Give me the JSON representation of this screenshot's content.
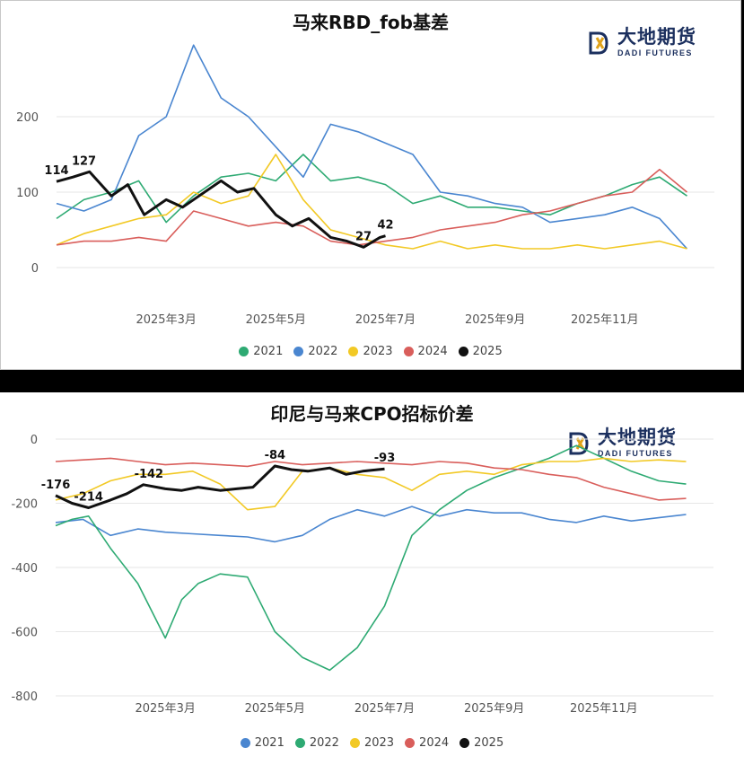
{
  "charts": [
    {
      "id": "top",
      "title": "马来RBD_fob基差"
    },
    {
      "id": "bottom",
      "title": "印尼与马来CPO招标价差"
    }
  ],
  "logo": {
    "cn": "大地期货",
    "en": "DADI FUTURES"
  },
  "colors": {
    "2021": "#2eaa73",
    "2022": "#4a86d0",
    "2023": "#f2c925",
    "2024": "#d95e5b",
    "2025": "#111111"
  },
  "chart_data": [
    {
      "type": "line",
      "title": "马来RBD_fob基差",
      "x_tick_labels": [
        "2025年3月",
        "2025年5月",
        "2025年7月",
        "2025年9月",
        "2025年11月"
      ],
      "x_tick_months": [
        3,
        5,
        7,
        9,
        11
      ],
      "x_range_month": [
        1,
        13
      ],
      "ylim": [
        0,
        300
      ],
      "y_ticks": [
        0,
        100,
        200
      ],
      "legend": [
        "2021",
        "2022",
        "2023",
        "2024",
        "2025"
      ],
      "annotations": [
        {
          "label": "114",
          "x": 1.0,
          "y": 114
        },
        {
          "label": "127",
          "x": 1.5,
          "y": 127
        },
        {
          "label": "27",
          "x": 6.6,
          "y": 27
        },
        {
          "label": "42",
          "x": 7.0,
          "y": 42
        }
      ],
      "series": [
        {
          "name": "2021",
          "x": [
            1.0,
            1.5,
            2.0,
            2.5,
            3.0,
            3.5,
            4.0,
            4.5,
            5.0,
            5.5,
            6.0,
            6.5,
            7.0,
            7.5,
            8.0,
            8.5,
            9.0,
            9.5,
            10.0,
            10.5,
            11.0,
            11.5,
            12.0,
            12.5
          ],
          "y": [
            65,
            90,
            100,
            115,
            60,
            95,
            120,
            125,
            115,
            150,
            115,
            120,
            110,
            85,
            95,
            80,
            80,
            75,
            70,
            85,
            95,
            110,
            120,
            95
          ]
        },
        {
          "name": "2022",
          "x": [
            1.0,
            1.5,
            2.0,
            2.5,
            3.0,
            3.5,
            4.0,
            4.5,
            5.0,
            5.5,
            6.0,
            6.5,
            7.0,
            7.5,
            8.0,
            8.5,
            9.0,
            9.5,
            10.0,
            10.5,
            11.0,
            11.5,
            12.0,
            12.5
          ],
          "y": [
            85,
            75,
            90,
            175,
            200,
            295,
            225,
            200,
            160,
            120,
            190,
            180,
            165,
            150,
            100,
            95,
            85,
            80,
            60,
            65,
            70,
            80,
            65,
            25
          ]
        },
        {
          "name": "2023",
          "x": [
            1.0,
            1.5,
            2.0,
            2.5,
            3.0,
            3.5,
            4.0,
            4.5,
            5.0,
            5.5,
            6.0,
            6.5,
            7.0,
            7.5,
            8.0,
            8.5,
            9.0,
            9.5,
            10.0,
            10.5,
            11.0,
            11.5,
            12.0,
            12.5
          ],
          "y": [
            30,
            45,
            55,
            65,
            70,
            100,
            85,
            95,
            150,
            90,
            50,
            40,
            30,
            25,
            35,
            25,
            30,
            25,
            25,
            30,
            25,
            30,
            35,
            25
          ]
        },
        {
          "name": "2024",
          "x": [
            1.0,
            1.5,
            2.0,
            2.5,
            3.0,
            3.5,
            4.0,
            4.5,
            5.0,
            5.5,
            6.0,
            6.5,
            7.0,
            7.5,
            8.0,
            8.5,
            9.0,
            9.5,
            10.0,
            10.5,
            11.0,
            11.5,
            12.0,
            12.5
          ],
          "y": [
            30,
            35,
            35,
            40,
            35,
            75,
            65,
            55,
            60,
            55,
            35,
            30,
            35,
            40,
            50,
            55,
            60,
            70,
            75,
            85,
            95,
            100,
            130,
            100
          ]
        },
        {
          "name": "2025",
          "x": [
            1.0,
            1.3,
            1.6,
            2.0,
            2.3,
            2.6,
            3.0,
            3.3,
            3.6,
            4.0,
            4.3,
            4.6,
            5.0,
            5.3,
            5.6,
            6.0,
            6.3,
            6.6,
            6.9,
            7.0
          ],
          "y": [
            114,
            120,
            127,
            95,
            110,
            70,
            90,
            80,
            95,
            115,
            100,
            105,
            70,
            55,
            65,
            40,
            35,
            27,
            40,
            42
          ]
        }
      ]
    },
    {
      "type": "line",
      "title": "印尼与马来CPO招标价差",
      "x_tick_labels": [
        "2025年3月",
        "2025年5月",
        "2025年7月",
        "2025年9月",
        "2025年11月"
      ],
      "x_tick_months": [
        3,
        5,
        7,
        9,
        11
      ],
      "x_range_month": [
        1,
        13
      ],
      "ylim": [
        -800,
        0
      ],
      "y_ticks": [
        0,
        -200,
        -400,
        -600,
        -800
      ],
      "legend": [
        "2021",
        "2022",
        "2023",
        "2024",
        "2025"
      ],
      "annotations": [
        {
          "label": "-176",
          "x": 1.0,
          "y": -176
        },
        {
          "label": "-214",
          "x": 1.6,
          "y": -214
        },
        {
          "label": "-142",
          "x": 2.7,
          "y": -142
        },
        {
          "label": "-84",
          "x": 5.0,
          "y": -84
        },
        {
          "label": "-93",
          "x": 7.0,
          "y": -93
        }
      ],
      "series": [
        {
          "name": "2021",
          "x": [
            1.0,
            1.5,
            2.0,
            2.5,
            3.0,
            3.5,
            4.0,
            4.5,
            5.0,
            5.5,
            6.0,
            6.5,
            7.0,
            7.5,
            8.0,
            8.5,
            9.0,
            9.5,
            10.0,
            10.5,
            11.0,
            11.5,
            12.0,
            12.5
          ],
          "y": [
            -260,
            -250,
            -300,
            -280,
            -290,
            -295,
            -300,
            -305,
            -320,
            -300,
            -250,
            -220,
            -240,
            -210,
            -240,
            -220,
            -230,
            -230,
            -250,
            -260,
            -240,
            -255,
            -245,
            -235
          ]
        },
        {
          "name": "2022",
          "x": [
            1.0,
            1.3,
            1.6,
            2.0,
            2.5,
            3.0,
            3.3,
            3.6,
            4.0,
            4.5,
            5.0,
            5.5,
            6.0,
            6.5,
            7.0,
            7.5,
            8.0,
            8.5,
            9.0,
            9.5,
            10.0,
            10.5,
            11.0,
            11.5,
            12.0,
            12.5
          ],
          "y": [
            -270,
            -250,
            -240,
            -340,
            -450,
            -620,
            -500,
            -450,
            -420,
            -430,
            -600,
            -680,
            -720,
            -650,
            -520,
            -300,
            -220,
            -160,
            -120,
            -90,
            -60,
            -20,
            -60,
            -100,
            -130,
            -140
          ]
        },
        {
          "name": "2023",
          "x": [
            1.0,
            1.5,
            2.0,
            2.5,
            3.0,
            3.5,
            4.0,
            4.5,
            5.0,
            5.5,
            6.0,
            6.5,
            7.0,
            7.5,
            8.0,
            8.5,
            9.0,
            9.5,
            10.0,
            10.5,
            11.0,
            11.5,
            12.0,
            12.5
          ],
          "y": [
            -190,
            -170,
            -130,
            -110,
            -110,
            -100,
            -140,
            -220,
            -210,
            -100,
            -90,
            -110,
            -120,
            -160,
            -110,
            -100,
            -110,
            -80,
            -70,
            -70,
            -60,
            -70,
            -65,
            -70
          ]
        },
        {
          "name": "2024",
          "x": [
            1.0,
            1.5,
            2.0,
            2.5,
            3.0,
            3.5,
            4.0,
            4.5,
            5.0,
            5.5,
            6.0,
            6.5,
            7.0,
            7.5,
            8.0,
            8.5,
            9.0,
            9.5,
            10.0,
            10.5,
            11.0,
            11.5,
            12.0,
            12.5
          ],
          "y": [
            -70,
            -65,
            -60,
            -70,
            -80,
            -75,
            -80,
            -85,
            -70,
            -80,
            -75,
            -70,
            -75,
            -80,
            -70,
            -75,
            -90,
            -95,
            -110,
            -120,
            -150,
            -170,
            -190,
            -185
          ]
        },
        {
          "name": "2025",
          "x": [
            1.0,
            1.3,
            1.6,
            2.0,
            2.3,
            2.6,
            3.0,
            3.3,
            3.6,
            4.0,
            4.3,
            4.6,
            5.0,
            5.3,
            5.6,
            6.0,
            6.3,
            6.6,
            7.0
          ],
          "y": [
            -176,
            -200,
            -214,
            -190,
            -170,
            -142,
            -155,
            -160,
            -150,
            -160,
            -155,
            -150,
            -84,
            -95,
            -100,
            -90,
            -110,
            -100,
            -93
          ]
        }
      ]
    }
  ]
}
